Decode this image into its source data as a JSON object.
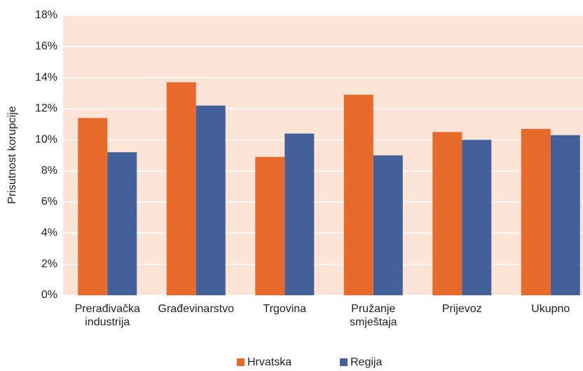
{
  "chart_data": {
    "type": "bar",
    "y_label": "Prisutnost korupcije",
    "categories": [
      [
        "Prerađivačka",
        "industrija"
      ],
      [
        "Građevinarstvo"
      ],
      [
        "Trgovina"
      ],
      [
        "Pružanje",
        "smještaja"
      ],
      [
        "Prijevoz"
      ],
      [
        "Ukupno"
      ]
    ],
    "series": [
      {
        "name": "Hrvatska",
        "color": "#e8692a",
        "values": [
          11.4,
          13.7,
          8.9,
          12.9,
          10.5,
          10.7
        ]
      },
      {
        "name": "Regija",
        "color": "#44609a",
        "values": [
          9.2,
          12.2,
          10.4,
          9.0,
          10.0,
          10.3
        ]
      }
    ],
    "ylim": [
      0,
      18
    ],
    "yticks": [
      {
        "value": 0,
        "label": "0%"
      },
      {
        "value": 2,
        "label": "2%"
      },
      {
        "value": 4,
        "label": "4%"
      },
      {
        "value": 6,
        "label": "6%"
      },
      {
        "value": 8,
        "label": "8%"
      },
      {
        "value": 10,
        "label": "10%"
      },
      {
        "value": 12,
        "label": "12%"
      },
      {
        "value": 14,
        "label": "14%"
      },
      {
        "value": 16,
        "label": "16%"
      },
      {
        "value": 18,
        "label": "18%"
      }
    ],
    "grid": true,
    "background": "#fbe4d5"
  }
}
